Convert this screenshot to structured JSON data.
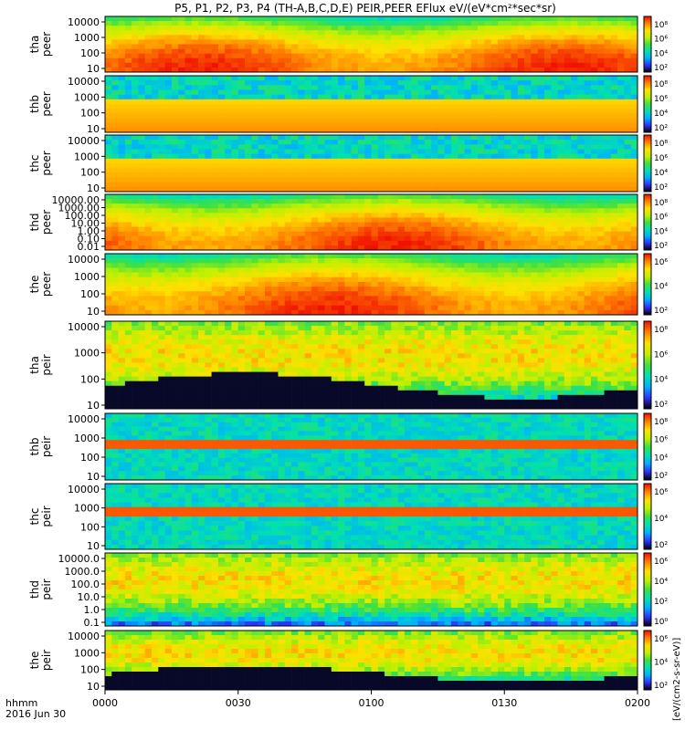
{
  "title": "P5, P1, P2, P3, P4 (TH-A,B,C,D,E) PEIR,PEER EFlux eV/(eV*cm²*sec*sr)",
  "time_axis": {
    "date_label": "2016 Jun 30",
    "format_label": "hhmm",
    "ticks": [
      "0000",
      "0030",
      "0100",
      "0130",
      "0200"
    ]
  },
  "colorbar_unit": "[eV/(cm2-s-sr-eV)]",
  "colormap": [
    "#000000",
    "#3030ff",
    "#00b0ff",
    "#00e0b0",
    "#40e040",
    "#c0f000",
    "#ffe000",
    "#ff8000",
    "#f01000"
  ],
  "chart_data": {
    "type": "heatmap",
    "title": "P5, P1, P2, P3, P4 (TH-A,B,C,D,E) PEIR,PEER EFlux eV/(eV*cm²*sec*sr)",
    "x": {
      "label": "hhmm",
      "range": [
        "0000",
        "0200"
      ],
      "ticks": [
        "0000",
        "0030",
        "0100",
        "0130",
        "0200"
      ]
    },
    "panels": [
      {
        "probe": "tha",
        "species": "peer",
        "ylabel": "tha\npeer",
        "yscale": "log",
        "yticks": [
          "10",
          "100",
          "1000",
          "10000"
        ],
        "cbar_ticks": [
          "10²",
          "10⁴",
          "10⁶",
          "10⁸"
        ]
      },
      {
        "probe": "thb",
        "species": "peer",
        "ylabel": "thb\npeer",
        "yscale": "log",
        "yticks": [
          "10",
          "100",
          "1000",
          "10000"
        ],
        "cbar_ticks": [
          "10²",
          "10⁴",
          "10⁶",
          "10⁸"
        ]
      },
      {
        "probe": "thc",
        "species": "peer",
        "ylabel": "thc\npeer",
        "yscale": "log",
        "yticks": [
          "10",
          "100",
          "1000",
          "10000"
        ],
        "cbar_ticks": [
          "10²",
          "10⁴",
          "10⁶",
          "10⁸"
        ]
      },
      {
        "probe": "thd",
        "species": "peer",
        "ylabel": "thd\npeer",
        "yscale": "log",
        "yticks": [
          "0.01",
          "0.10",
          "1.00",
          "10.00",
          "100.00",
          "1000.00",
          "10000.00"
        ],
        "cbar_ticks": [
          "10²",
          "10⁴",
          "10⁶",
          "10⁸"
        ]
      },
      {
        "probe": "the",
        "species": "peer",
        "ylabel": "the\npeer",
        "yscale": "log",
        "yticks": [
          "10",
          "100",
          "1000",
          "10000"
        ],
        "cbar_ticks": [
          "10²",
          "10⁴",
          "10⁶"
        ]
      },
      {
        "probe": "tha",
        "species": "peir",
        "ylabel": "tha\npeir",
        "yscale": "log",
        "yticks": [
          "10",
          "100",
          "1000",
          "10000"
        ],
        "cbar_ticks": [
          "10²",
          "10⁴",
          "10⁶",
          "10⁸"
        ]
      },
      {
        "probe": "thb",
        "species": "peir",
        "ylabel": "thb\npeir",
        "yscale": "log",
        "yticks": [
          "10",
          "100",
          "1000",
          "10000"
        ],
        "cbar_ticks": [
          "10²",
          "10⁴",
          "10⁶",
          "10⁸"
        ]
      },
      {
        "probe": "thc",
        "species": "peir",
        "ylabel": "thc\npeir",
        "yscale": "log",
        "yticks": [
          "10",
          "100",
          "1000",
          "10000"
        ],
        "cbar_ticks": [
          "10²",
          "10⁴",
          "10⁶"
        ]
      },
      {
        "probe": "thd",
        "species": "peir",
        "ylabel": "thd\npeir",
        "yscale": "log",
        "yticks": [
          "0.1",
          "1.0",
          "10.0",
          "100.0",
          "1000.0",
          "10000.0"
        ],
        "cbar_ticks": [
          "10⁰",
          "10²",
          "10⁴",
          "10⁶"
        ]
      },
      {
        "probe": "the",
        "species": "peir",
        "ylabel": "the\npeir",
        "yscale": "log",
        "yticks": [
          "10",
          "100",
          "1000",
          "10000"
        ],
        "cbar_ticks": [
          "10²",
          "10⁴",
          "10⁶"
        ]
      }
    ]
  }
}
